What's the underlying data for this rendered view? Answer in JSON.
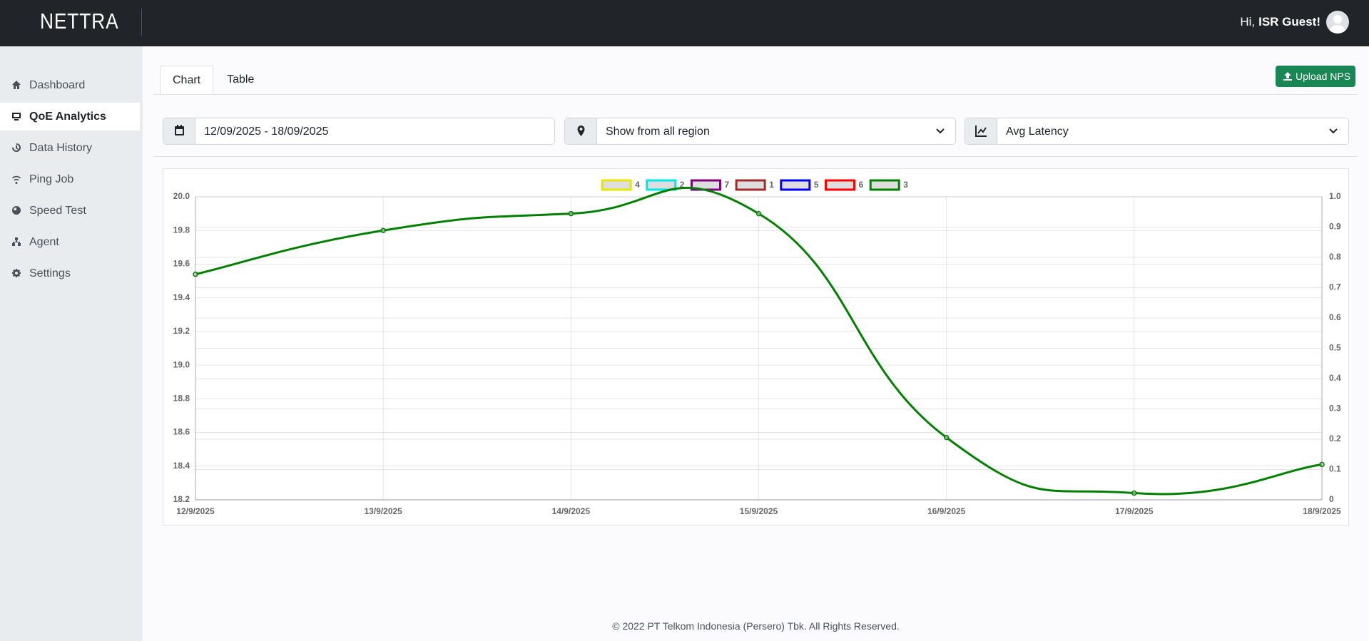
{
  "header": {
    "brand": "NETTRA",
    "greeting": "Hi,",
    "user": "ISR Guest!"
  },
  "sidebar": {
    "items": [
      "Dashboard",
      "QoE Analytics",
      "Data History",
      "Ping Job",
      "Speed Test",
      "Agent",
      "Settings"
    ],
    "active": 1
  },
  "tabs": {
    "items": [
      "Chart",
      "Table"
    ],
    "active": 0
  },
  "upload_button": "Upload NPS",
  "filters": {
    "date_range": "12/09/2025 - 18/09/2025",
    "region": "Show from all region",
    "metric": "Avg Latency"
  },
  "chart_data": {
    "type": "line",
    "categories": [
      "12/9/2025",
      "13/9/2025",
      "14/9/2025",
      "15/9/2025",
      "16/9/2025",
      "17/9/2025",
      "18/9/2025"
    ],
    "series": [
      {
        "name": "4",
        "color": "#e6e600",
        "values": [
          null,
          null,
          null,
          null,
          null,
          null,
          null
        ]
      },
      {
        "name": "2",
        "color": "#00e5e5",
        "values": [
          null,
          null,
          null,
          null,
          null,
          null,
          null
        ]
      },
      {
        "name": "7",
        "color": "#800080",
        "values": [
          null,
          null,
          null,
          null,
          null,
          null,
          null
        ]
      },
      {
        "name": "1",
        "color": "#a52a2a",
        "values": [
          null,
          null,
          null,
          null,
          null,
          null,
          null
        ]
      },
      {
        "name": "5",
        "color": "#0000ff",
        "values": [
          null,
          null,
          null,
          null,
          null,
          null,
          null
        ]
      },
      {
        "name": "6",
        "color": "#ff0000",
        "values": [
          null,
          null,
          null,
          null,
          null,
          null,
          null
        ]
      },
      {
        "name": "3",
        "color": "#008000",
        "values": [
          19.54,
          19.8,
          19.9,
          19.9,
          18.57,
          18.24,
          18.41
        ]
      }
    ],
    "ylim": [
      18.2,
      20
    ],
    "yticks": [
      18.2,
      18.4,
      18.6,
      18.8,
      {
        "value": 19,
        "label": "19.0"
      },
      19.2,
      19.4,
      19.6,
      19.8,
      {
        "value": 20,
        "label": "20.0"
      }
    ],
    "y2lim": [
      0,
      1
    ],
    "y2ticks": [
      0,
      0.1,
      0.2,
      0.3,
      0.4,
      0.5,
      0.6,
      0.7,
      0.8,
      0.9,
      {
        "value": 1,
        "label": "1.0"
      }
    ],
    "grid": true,
    "legend": "top"
  },
  "footer": "© 2022 PT Telkom Indonesia (Persero) Tbk. All Rights Reserved."
}
